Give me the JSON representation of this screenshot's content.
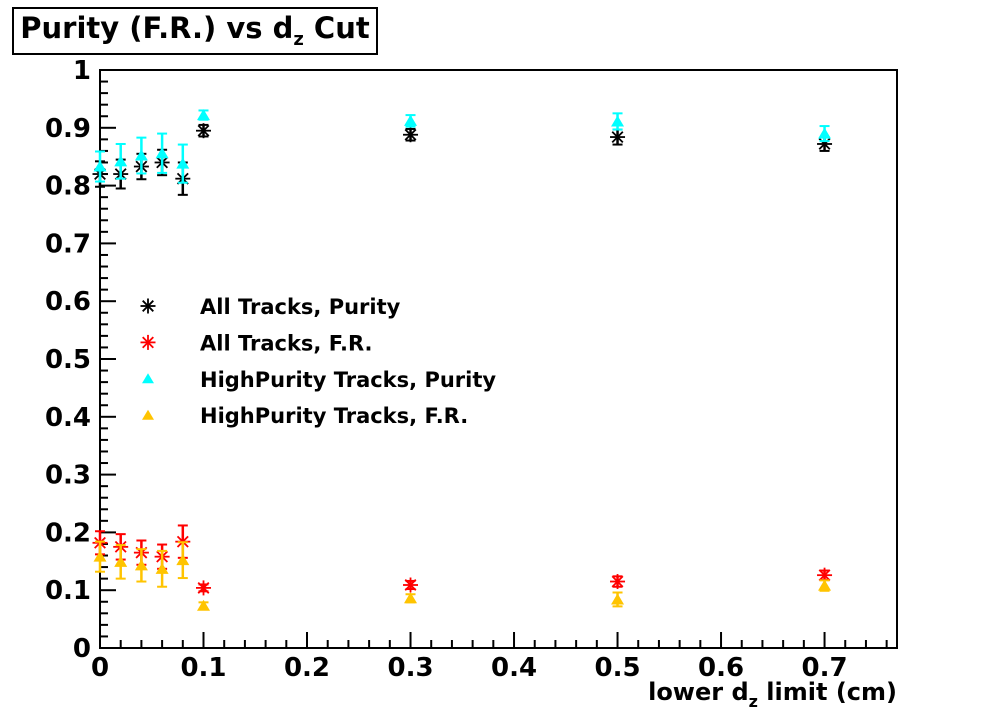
{
  "title": {
    "prefix": "Purity (F.R.) vs d",
    "sub": "z",
    "suffix": " Cut"
  },
  "colors": {
    "background": "#FFFFFF",
    "frame": "#000000",
    "all_purity": "#000000",
    "all_fr": "#FF0000",
    "hp_purity": "#00FFFF",
    "hp_fr": "#FFC400"
  },
  "chart_data": {
    "type": "scatter",
    "title": "Purity (F.R.) vs d_z Cut",
    "xlabel": {
      "prefix": "lower d",
      "sub": "z",
      "suffix": " limit (cm)"
    },
    "ylabel": "",
    "xlim": [
      0,
      0.77
    ],
    "ylim": [
      0,
      1
    ],
    "minor_step": 0.02,
    "grid": false,
    "legend_position": "upper-left-inside",
    "x_ticks": [
      {
        "v": 0,
        "label": "0"
      },
      {
        "v": 0.1,
        "label": "0.1"
      },
      {
        "v": 0.2,
        "label": "0.2"
      },
      {
        "v": 0.3,
        "label": "0.3"
      },
      {
        "v": 0.4,
        "label": "0.4"
      },
      {
        "v": 0.5,
        "label": "0.5"
      },
      {
        "v": 0.6,
        "label": "0.6"
      },
      {
        "v": 0.7,
        "label": "0.7"
      }
    ],
    "y_ticks": [
      {
        "v": 0,
        "label": "0"
      },
      {
        "v": 0.1,
        "label": "0.1"
      },
      {
        "v": 0.2,
        "label": "0.2"
      },
      {
        "v": 0.3,
        "label": "0.3"
      },
      {
        "v": 0.4,
        "label": "0.4"
      },
      {
        "v": 0.5,
        "label": "0.5"
      },
      {
        "v": 0.6,
        "label": "0.6"
      },
      {
        "v": 0.7,
        "label": "0.7"
      },
      {
        "v": 0.8,
        "label": "0.8"
      },
      {
        "v": 0.9,
        "label": "0.9"
      },
      {
        "v": 1,
        "label": "1"
      }
    ],
    "series": [
      {
        "name": "All Tracks, Purity",
        "marker": "asterisk",
        "color": "#000000",
        "points": [
          {
            "x": 0.0,
            "y": 0.82,
            "ey": 0.022
          },
          {
            "x": 0.02,
            "y": 0.82,
            "ey": 0.025
          },
          {
            "x": 0.04,
            "y": 0.833,
            "ey": 0.022
          },
          {
            "x": 0.06,
            "y": 0.84,
            "ey": 0.022
          },
          {
            "x": 0.08,
            "y": 0.812,
            "ey": 0.028
          },
          {
            "x": 0.1,
            "y": 0.895,
            "ey": 0.01
          },
          {
            "x": 0.3,
            "y": 0.888,
            "ey": 0.01
          },
          {
            "x": 0.5,
            "y": 0.884,
            "ey": 0.013
          },
          {
            "x": 0.7,
            "y": 0.872,
            "ey": 0.012
          }
        ]
      },
      {
        "name": "All Tracks, F.R.",
        "marker": "asterisk",
        "color": "#FF0000",
        "points": [
          {
            "x": 0.0,
            "y": 0.182,
            "ey": 0.02
          },
          {
            "x": 0.02,
            "y": 0.175,
            "ey": 0.022
          },
          {
            "x": 0.04,
            "y": 0.165,
            "ey": 0.021
          },
          {
            "x": 0.06,
            "y": 0.158,
            "ey": 0.021
          },
          {
            "x": 0.08,
            "y": 0.184,
            "ey": 0.028
          },
          {
            "x": 0.1,
            "y": 0.104,
            "ey": 0.006
          },
          {
            "x": 0.3,
            "y": 0.109,
            "ey": 0.007
          },
          {
            "x": 0.5,
            "y": 0.115,
            "ey": 0.009
          },
          {
            "x": 0.7,
            "y": 0.126,
            "ey": 0.008
          }
        ]
      },
      {
        "name": "HighPurity Tracks, Purity",
        "marker": "triangle",
        "color": "#00FFFF",
        "points": [
          {
            "x": 0.0,
            "y": 0.833,
            "ey": 0.026
          },
          {
            "x": 0.02,
            "y": 0.842,
            "ey": 0.03
          },
          {
            "x": 0.04,
            "y": 0.852,
            "ey": 0.031
          },
          {
            "x": 0.06,
            "y": 0.856,
            "ey": 0.034
          },
          {
            "x": 0.08,
            "y": 0.838,
            "ey": 0.033
          },
          {
            "x": 0.1,
            "y": 0.922,
            "ey": 0.008
          },
          {
            "x": 0.3,
            "y": 0.912,
            "ey": 0.01
          },
          {
            "x": 0.5,
            "y": 0.911,
            "ey": 0.014
          },
          {
            "x": 0.7,
            "y": 0.89,
            "ey": 0.013
          }
        ]
      },
      {
        "name": "HighPurity Tracks, F.R.",
        "marker": "triangle",
        "color": "#FFC400",
        "points": [
          {
            "x": 0.0,
            "y": 0.158,
            "ey": 0.026
          },
          {
            "x": 0.02,
            "y": 0.149,
            "ey": 0.029
          },
          {
            "x": 0.04,
            "y": 0.143,
            "ey": 0.028
          },
          {
            "x": 0.06,
            "y": 0.137,
            "ey": 0.031
          },
          {
            "x": 0.08,
            "y": 0.152,
            "ey": 0.031
          },
          {
            "x": 0.1,
            "y": 0.073,
            "ey": 0.006
          },
          {
            "x": 0.3,
            "y": 0.086,
            "ey": 0.007
          },
          {
            "x": 0.5,
            "y": 0.084,
            "ey": 0.012
          },
          {
            "x": 0.7,
            "y": 0.108,
            "ey": 0.009
          }
        ]
      }
    ]
  }
}
